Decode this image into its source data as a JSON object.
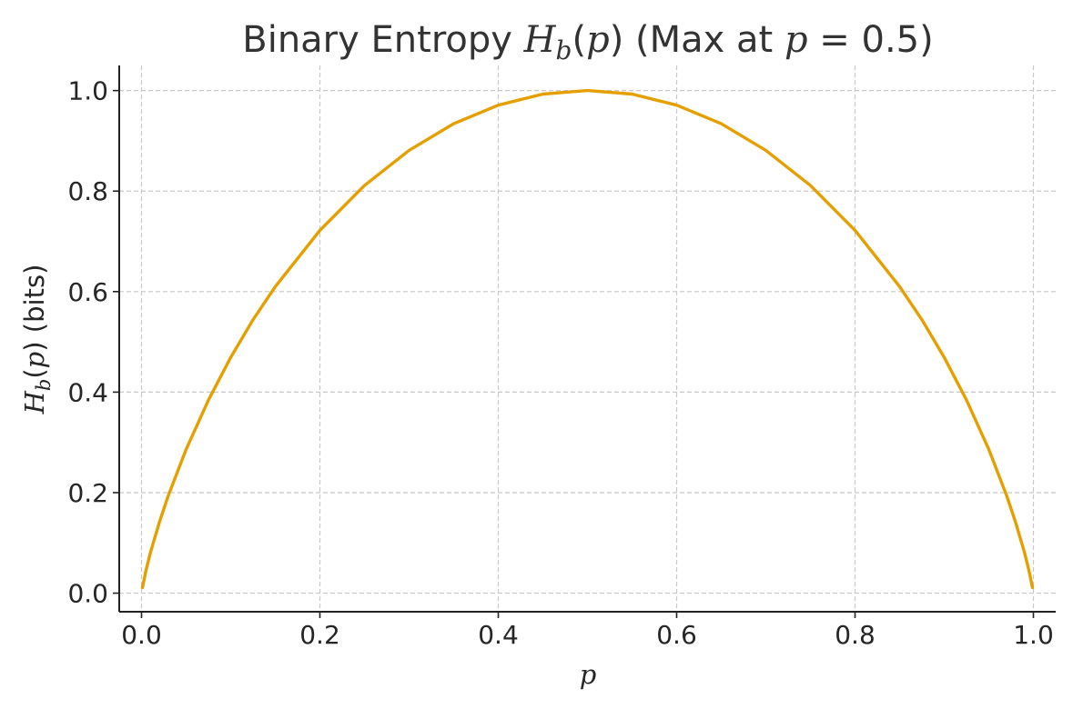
{
  "chart_data": {
    "type": "line",
    "title": {
      "prefix": "Binary Entropy ",
      "math_symbol": "H",
      "math_subscript": "b",
      "math_arg_open": "(",
      "math_arg": "p",
      "math_arg_close": ")",
      "suffix_text": " (Max at ",
      "max_var": "p",
      "max_eq": " = 0.5)"
    },
    "xlabel": "p",
    "ylabel": {
      "symbol": "H",
      "subscript": "b",
      "arg_open": "(",
      "arg": "p",
      "arg_close": ")",
      "unit": " (bits)"
    },
    "xlim": [
      -0.025,
      1.025
    ],
    "ylim": [
      -0.037,
      1.05
    ],
    "x_ticks": [
      0.0,
      0.2,
      0.4,
      0.6,
      0.8,
      1.0
    ],
    "x_tick_labels": [
      "0.0",
      "0.2",
      "0.4",
      "0.6",
      "0.8",
      "1.0"
    ],
    "y_ticks": [
      0.0,
      0.2,
      0.4,
      0.6,
      0.8,
      1.0
    ],
    "y_tick_labels": [
      "0.0",
      "0.2",
      "0.4",
      "0.6",
      "0.8",
      "1.0"
    ],
    "grid": true,
    "series": [
      {
        "color": "#E69F00",
        "x": [
          0.001,
          0.005,
          0.01,
          0.02,
          0.03,
          0.05,
          0.075,
          0.1,
          0.125,
          0.15,
          0.2,
          0.25,
          0.3,
          0.35,
          0.4,
          0.45,
          0.5,
          0.55,
          0.6,
          0.65,
          0.7,
          0.75,
          0.8,
          0.85,
          0.875,
          0.9,
          0.925,
          0.95,
          0.97,
          0.98,
          0.99,
          0.995,
          0.999
        ],
        "y": [
          0.011,
          0.045,
          0.081,
          0.141,
          0.194,
          0.286,
          0.384,
          0.469,
          0.544,
          0.61,
          0.722,
          0.811,
          0.881,
          0.934,
          0.971,
          0.993,
          1.0,
          0.993,
          0.971,
          0.934,
          0.881,
          0.811,
          0.722,
          0.61,
          0.544,
          0.469,
          0.384,
          0.286,
          0.194,
          0.141,
          0.081,
          0.045,
          0.011
        ]
      }
    ]
  }
}
